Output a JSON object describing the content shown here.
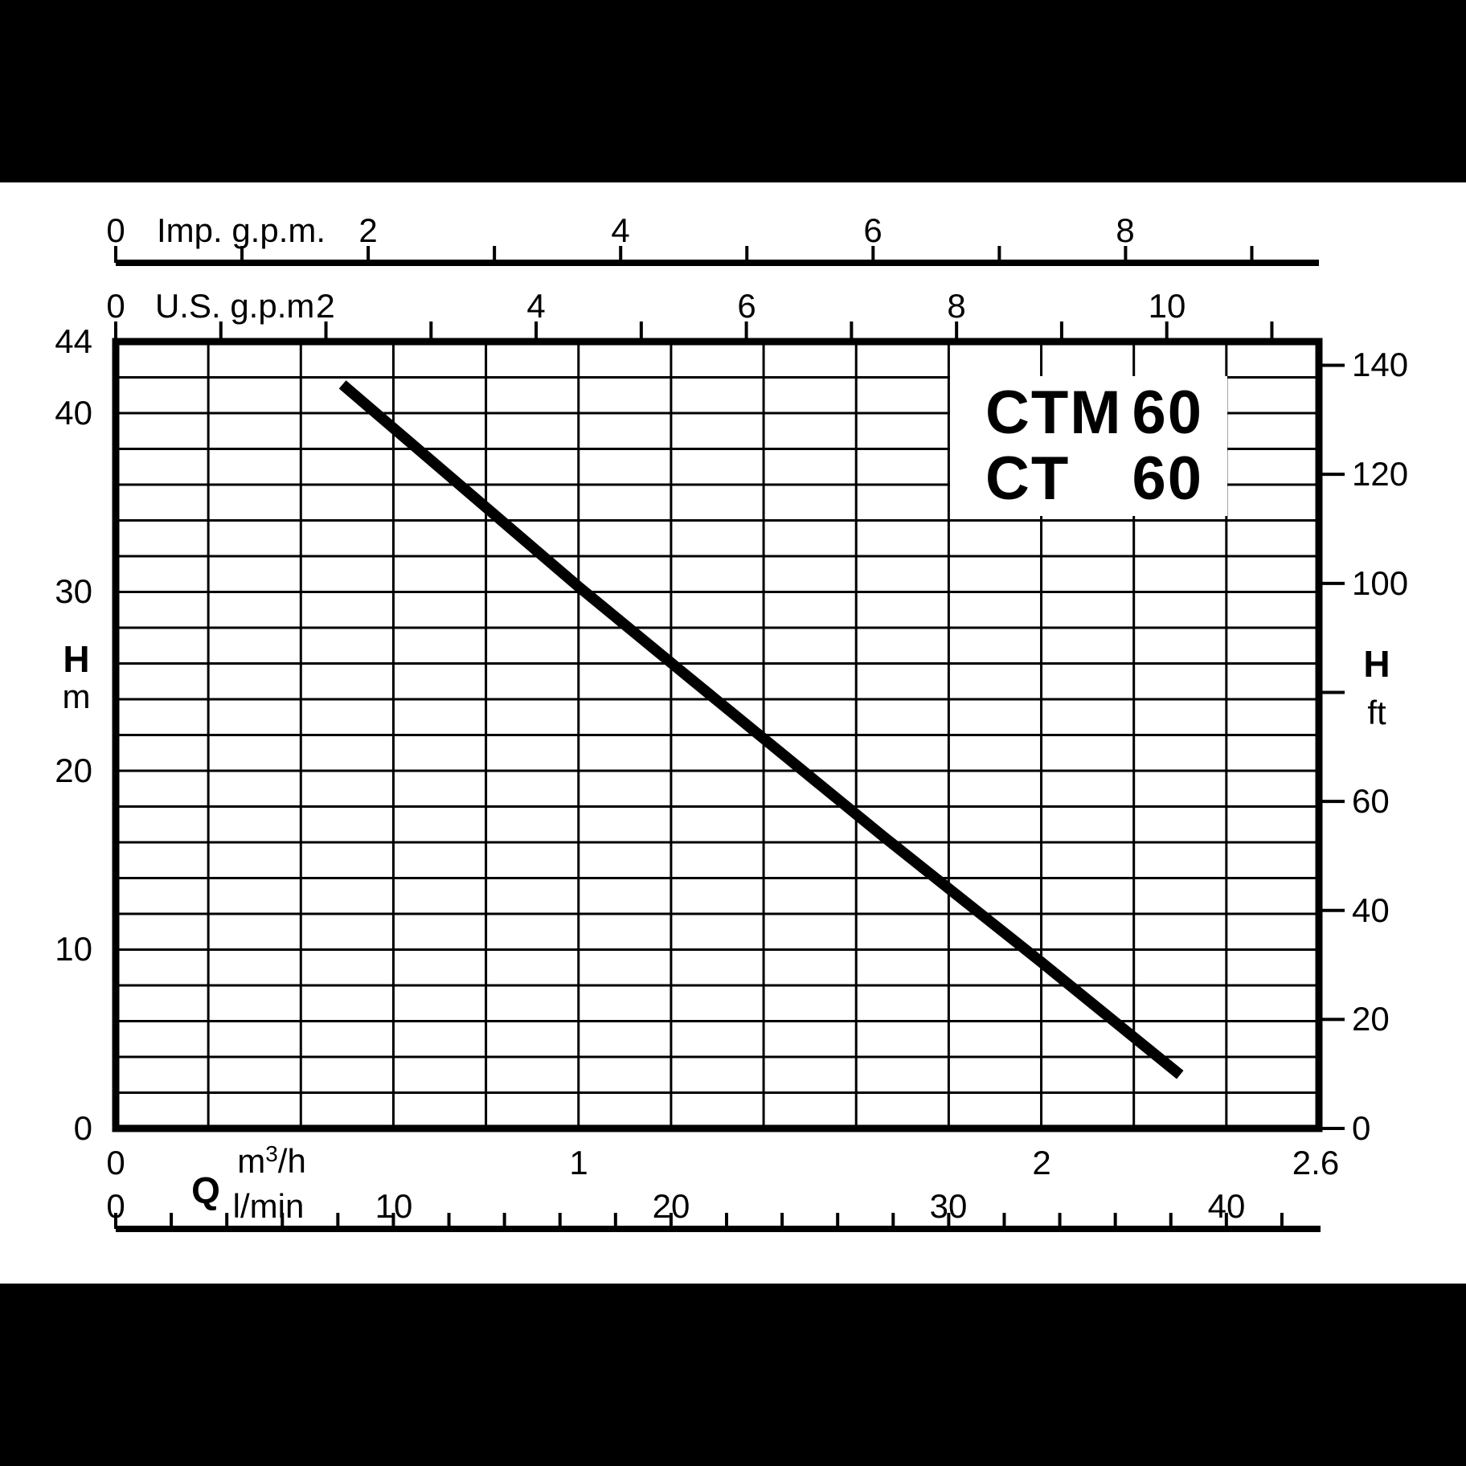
{
  "title_box": {
    "rows": [
      {
        "model": "CTM",
        "size": "60"
      },
      {
        "model": "CT",
        "size": "60"
      }
    ]
  },
  "chart_data": {
    "type": "line",
    "title": "CTM 60 / CT 60 pump head curve",
    "grid": true,
    "legend_position": "none",
    "colors": {
      "ink": "#000000",
      "paper": "#ffffff",
      "letterbox": "#000000"
    },
    "x_axes": [
      {
        "id": "imp_gpm",
        "label": "Imp. g.p.m.",
        "min": 0,
        "max": 9.53,
        "minor_tick_step": 1,
        "labeled_ticks": [
          0,
          2,
          4,
          6,
          8
        ],
        "m3h_per_unit": 0.27277
      },
      {
        "id": "us_gpm",
        "label": "U.S. g.p.m.",
        "min": 0,
        "max": 11.45,
        "minor_tick_step": 1,
        "labeled_ticks": [
          0,
          2,
          4,
          6,
          8,
          10
        ],
        "m3h_per_unit": 0.22712
      },
      {
        "id": "m3h",
        "quantity_label": "Q",
        "unit_base": "m",
        "unit_sup": "3",
        "unit_rest": "/h",
        "min": 0,
        "max": 2.6,
        "grid_step": 0.2,
        "labeled_ticks": [
          0,
          1,
          2,
          2.6
        ],
        "m3h_per_unit": 1
      },
      {
        "id": "lmin",
        "unit": "l/min",
        "min": 0,
        "max": 43.3,
        "minor_tick_step": 2,
        "labeled_ticks": [
          0,
          10,
          20,
          30,
          40
        ],
        "m3h_per_unit": 0.06
      }
    ],
    "y_axes": [
      {
        "id": "h_m",
        "label": "H",
        "unit": "m",
        "min": 0,
        "max": 44,
        "grid_step": 2,
        "labeled_ticks": [
          44,
          40,
          30,
          20,
          10,
          0
        ],
        "m_per_unit": 1
      },
      {
        "id": "h_ft",
        "label": "H",
        "unit": "ft",
        "min": 0,
        "max": 144.4,
        "minor_tick_step": 20,
        "labeled_ticks": [
          140,
          120,
          100,
          60,
          40,
          20,
          0
        ],
        "unlabeled_ticks": [
          80
        ],
        "m_per_unit": 0.3048
      }
    ],
    "series": [
      {
        "name": "CTM 60 / CT 60",
        "x_unit": "m3/h",
        "y_unit": "m",
        "points": [
          [
            0.49,
            41.6
          ],
          [
            1.0,
            30.3
          ],
          [
            1.23,
            25.4
          ],
          [
            1.66,
            16.3
          ],
          [
            2.0,
            9.3
          ],
          [
            2.3,
            3.0
          ]
        ]
      }
    ]
  }
}
